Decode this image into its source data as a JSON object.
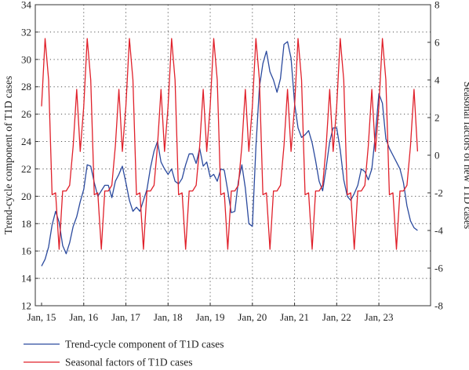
{
  "chart_data": {
    "type": "line",
    "title": "",
    "xlabel": "",
    "x_tick_labels": [
      "Jan, 15",
      "Jan, 16",
      "Jan, 17",
      "Jan, 18",
      "Jan, 19",
      "Jan, 20",
      "Jan, 21",
      "Jan, 22",
      "Jan, 23"
    ],
    "x_start_year": 2015,
    "months": 108,
    "left_axis": {
      "label": "Trend-cycle component of T1D cases",
      "ylim": [
        12,
        34
      ],
      "ticks": [
        "12",
        "14",
        "16",
        "18",
        "20",
        "22",
        "24",
        "26",
        "28",
        "30",
        "32",
        "34"
      ]
    },
    "right_axis": {
      "label": "Seasonal factors of new T1D cases",
      "ylim": [
        -8,
        8
      ],
      "ticks": [
        "-8",
        "-6",
        "-4",
        "-2",
        "0",
        "2",
        "4",
        "6",
        "8"
      ]
    },
    "grid": "dotted",
    "legend_position": "bottom",
    "series": [
      {
        "name": "Trend-cycle component of T1D cases",
        "axis": "left",
        "color": "#2b4a9e",
        "values": [
          14.9,
          15.4,
          16.3,
          17.9,
          18.9,
          18.1,
          16.4,
          15.8,
          16.6,
          17.8,
          18.5,
          19.6,
          20.5,
          22.3,
          22.2,
          21.0,
          20.0,
          20.4,
          20.8,
          20.8,
          19.9,
          21.1,
          21.6,
          22.2,
          21.0,
          19.7,
          18.9,
          19.2,
          18.9,
          19.7,
          20.5,
          22.1,
          23.3,
          24.0,
          22.5,
          22.0,
          21.6,
          22.0,
          21.1,
          20.9,
          21.3,
          22.3,
          23.1,
          23.1,
          22.4,
          23.5,
          22.2,
          22.5,
          21.4,
          21.6,
          21.1,
          22.0,
          21.9,
          20.4,
          18.8,
          18.9,
          21.1,
          22.3,
          20.6,
          18.0,
          17.8,
          23.6,
          28.0,
          29.7,
          30.6,
          29.1,
          28.5,
          27.6,
          28.6,
          31.1,
          31.3,
          30.1,
          26.8,
          25.0,
          24.3,
          24.5,
          24.8,
          23.9,
          22.6,
          21.1,
          20.4,
          22.1,
          24.0,
          25.0,
          25.0,
          23.4,
          21.2,
          20.0,
          19.7,
          20.2,
          20.8,
          22.0,
          21.8,
          21.2,
          22.0,
          24.5,
          27.5,
          26.8,
          24.2,
          23.5,
          23.0,
          22.5,
          22.0,
          21.0,
          19.3,
          18.2,
          17.7,
          17.5
        ]
      },
      {
        "name": "Seasonal factors of T1D cases",
        "axis": "right",
        "color": "#e0202a",
        "values": [
          2.6,
          6.2,
          4.0,
          -2.1,
          -2.0,
          -5.0,
          -1.9,
          -1.9,
          -1.6,
          0.5,
          3.5,
          0.2,
          2.6,
          6.2,
          4.0,
          -2.1,
          -2.0,
          -5.0,
          -1.9,
          -1.9,
          -1.6,
          0.5,
          3.5,
          0.2,
          2.6,
          6.2,
          4.0,
          -2.1,
          -2.0,
          -5.0,
          -1.9,
          -1.9,
          -1.6,
          0.5,
          3.5,
          0.2,
          2.6,
          6.2,
          4.0,
          -2.1,
          -2.0,
          -5.0,
          -1.9,
          -1.9,
          -1.6,
          0.5,
          3.5,
          0.2,
          2.6,
          6.2,
          4.0,
          -2.1,
          -2.0,
          -5.0,
          -1.9,
          -1.9,
          -1.6,
          0.5,
          3.5,
          0.2,
          2.6,
          6.2,
          4.0,
          -2.1,
          -2.0,
          -5.0,
          -1.9,
          -1.9,
          -1.6,
          0.5,
          3.5,
          0.2,
          2.6,
          6.2,
          4.0,
          -2.1,
          -2.0,
          -5.0,
          -1.9,
          -1.9,
          -1.6,
          0.5,
          3.5,
          0.2,
          2.6,
          6.2,
          4.0,
          -2.1,
          -2.0,
          -5.0,
          -1.9,
          -1.9,
          -1.6,
          0.5,
          3.5,
          0.2,
          2.6,
          6.2,
          4.0,
          -2.1,
          -2.0,
          -5.0,
          -1.9,
          -1.9,
          -1.6,
          0.5,
          3.5,
          0.2
        ]
      }
    ]
  }
}
